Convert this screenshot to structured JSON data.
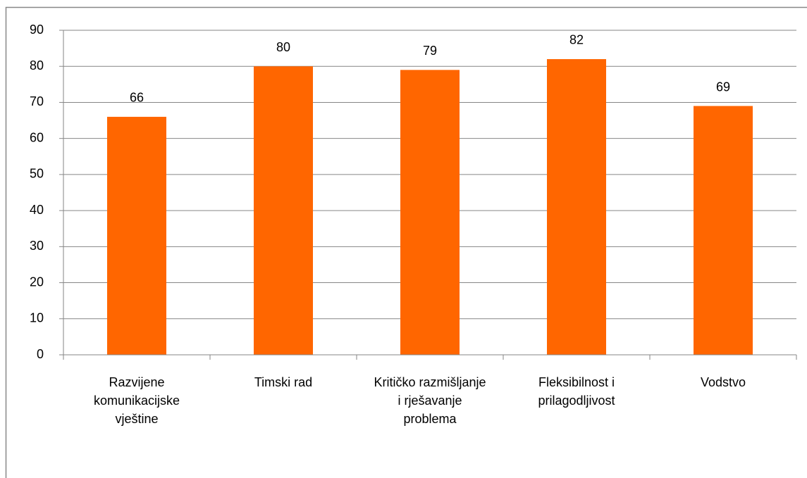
{
  "chart_data": {
    "type": "bar",
    "categories": [
      "Razvijene komunikacijske vještine",
      "Timski rad",
      "Kritičko razmišljanje i rješavanje problema",
      "Fleksibilnost i prilagodljivost",
      "Vodstvo"
    ],
    "values": [
      66,
      80,
      79,
      82,
      69
    ],
    "color": "#ff6600",
    "ylim": [
      0,
      90
    ],
    "yticks": [
      0,
      10,
      20,
      30,
      40,
      50,
      60,
      70,
      80,
      90
    ],
    "grid": true
  }
}
